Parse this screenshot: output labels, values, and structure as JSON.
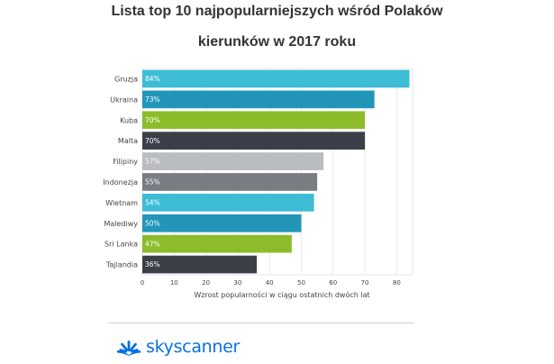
{
  "chart_data": {
    "type": "bar",
    "orientation": "horizontal",
    "title_line1": "Lista top 10 najpopularniejszych wśród Polaków",
    "title_line2": "kierunków w 2017 roku",
    "xlabel": "Wzrost popularności w ciągu ostatnich dwóch lat",
    "ylabel": "",
    "xlim": [
      0,
      85
    ],
    "xticks": [
      0,
      10,
      20,
      30,
      40,
      50,
      60,
      70,
      80
    ],
    "grid": true,
    "legend": "none",
    "categories": [
      "Gruzja",
      "Ukraina",
      "Kuba",
      "Malta",
      "Filipiny",
      "Indonezja",
      "Wietnam",
      "Malediwy",
      "Sri Lanka",
      "Tajlandia"
    ],
    "values": [
      84,
      73,
      70,
      70,
      57,
      55,
      54,
      50,
      47,
      36
    ],
    "data_labels": [
      "84%",
      "73%",
      "70%",
      "70%",
      "57%",
      "55%",
      "54%",
      "50%",
      "47%",
      "36%"
    ],
    "colors": [
      "#3dbcd6",
      "#2196b9",
      "#8cbc2c",
      "#3a3f48",
      "#b9bcc1",
      "#787d84",
      "#3dbcd6",
      "#2196b9",
      "#8cbc2c",
      "#3a3f48"
    ]
  },
  "footer": {
    "logo_text": "skyscanner",
    "logo_icon": "skyscanner-sunrise-icon",
    "logo_color": "#0770e3"
  }
}
